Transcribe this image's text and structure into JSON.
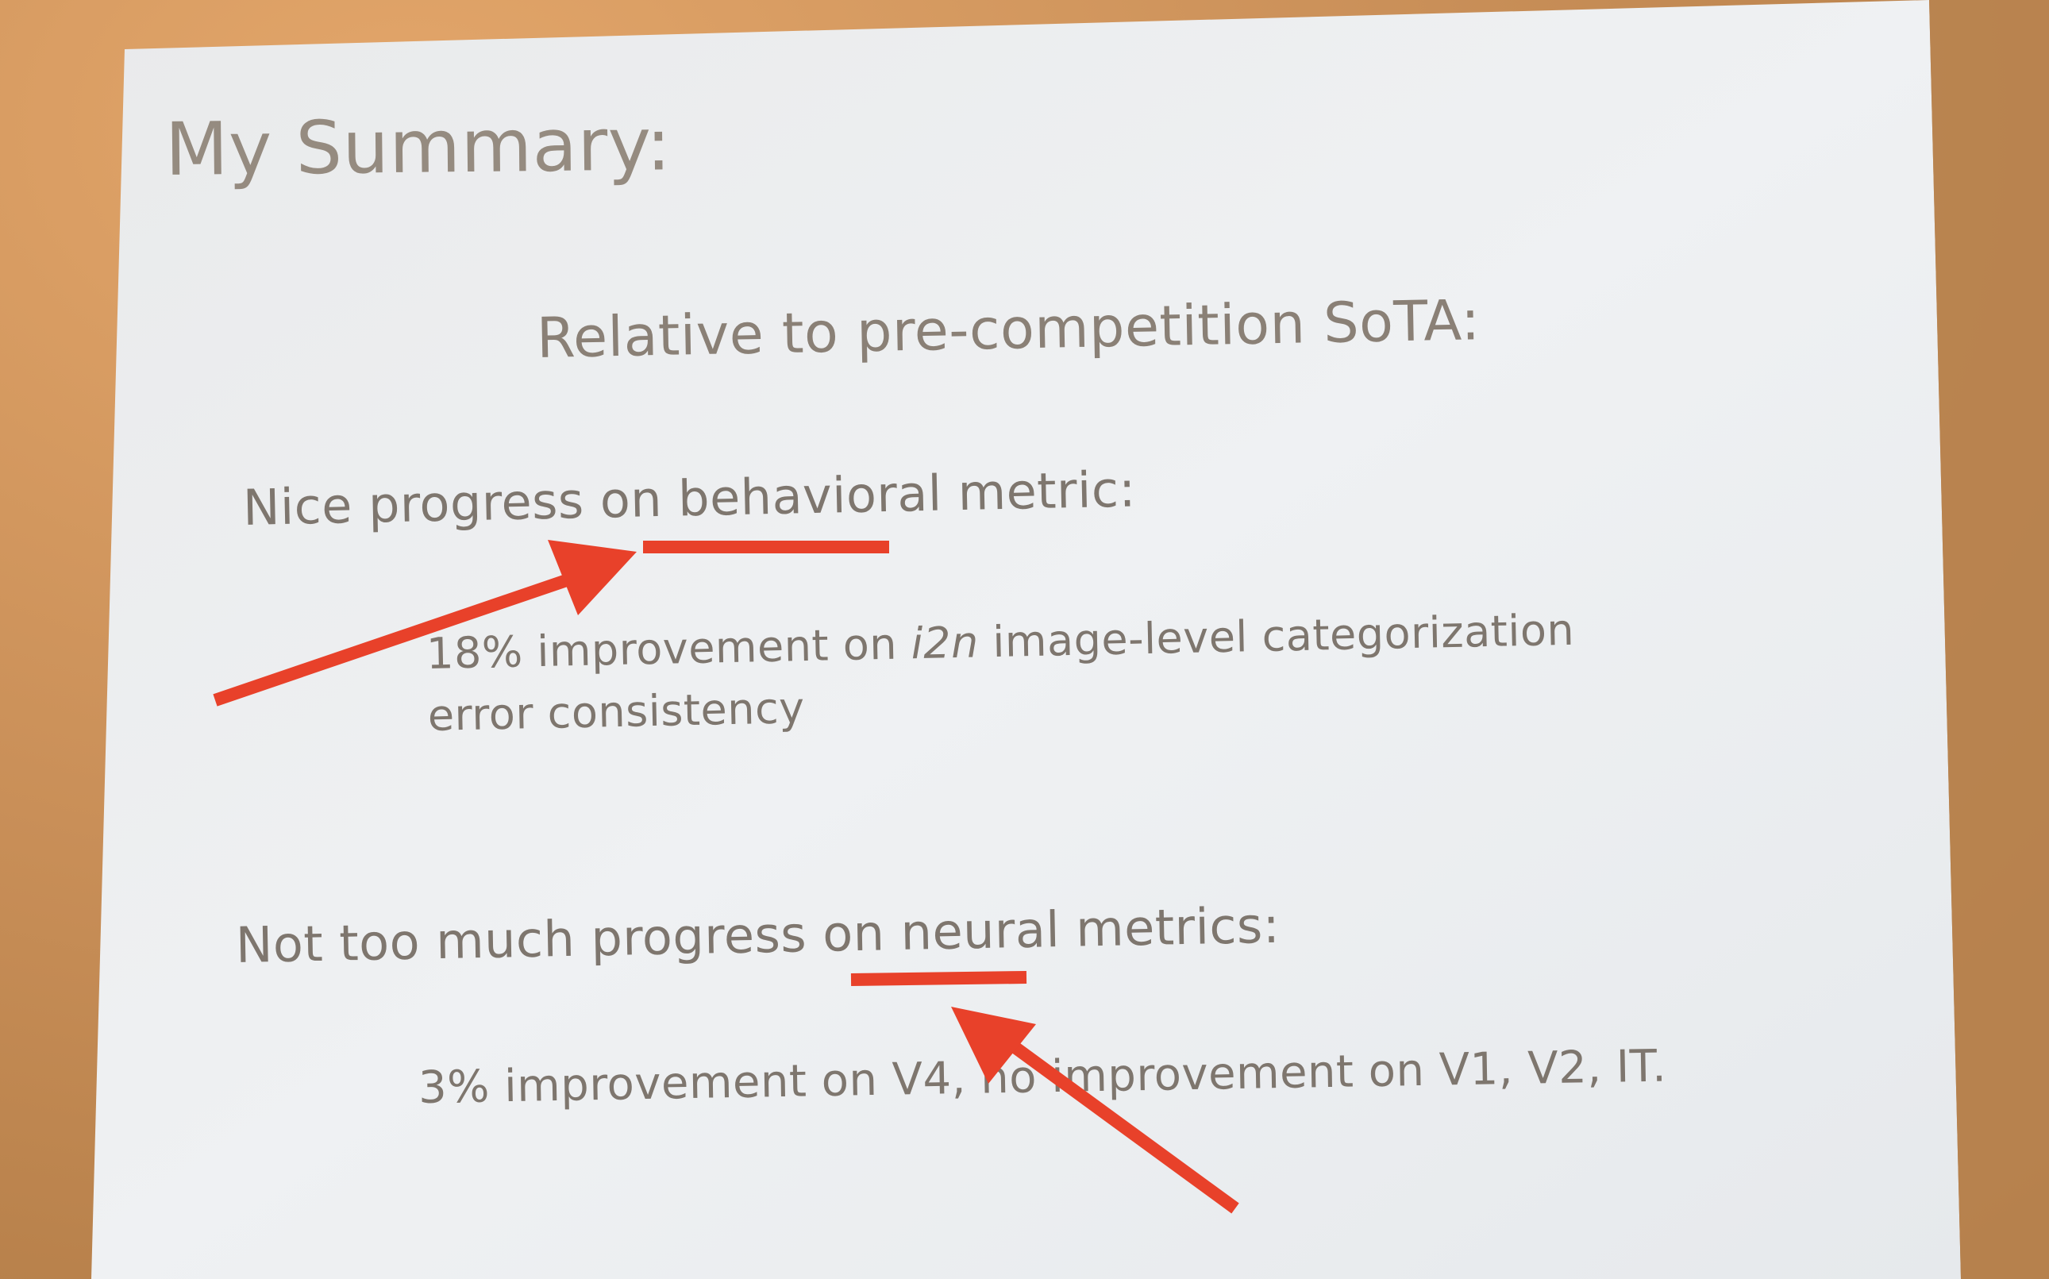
{
  "slide": {
    "title": "My Summary:",
    "subtitle": "Relative to pre-competition SoTA:",
    "behavioral": {
      "heading_prefix": "Nice progress on ",
      "heading_keyword": "behavioral",
      "heading_suffix": " metric:",
      "detail_prefix": "18% improvement on ",
      "detail_italic": "i2n",
      "detail_suffix": " image-level categorization",
      "detail_line2": "error consistency"
    },
    "neural": {
      "heading_prefix": "Not too much progress on ",
      "heading_keyword": "neural",
      "heading_suffix": " metrics:",
      "detail": "3% improvement on V4, no improvement on V1, V2, IT."
    }
  },
  "colors": {
    "background": "#c98f58",
    "slide": "#eef0f2",
    "text": "#7e766e",
    "annotation": "#e8412a"
  }
}
